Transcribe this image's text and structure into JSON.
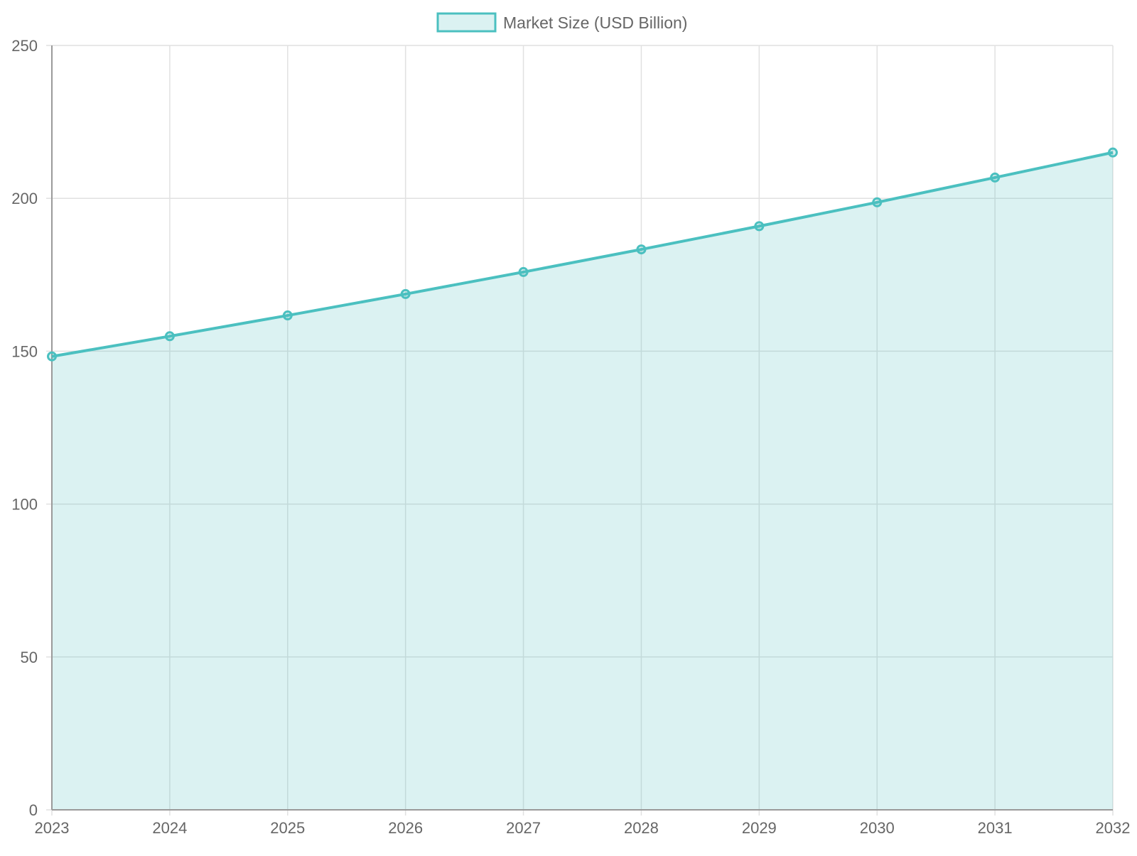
{
  "chart_data": {
    "type": "area",
    "categories": [
      "2023",
      "2024",
      "2025",
      "2026",
      "2027",
      "2028",
      "2029",
      "2030",
      "2031",
      "2032"
    ],
    "series": [
      {
        "name": "Market Size (USD Billion)",
        "values": [
          148.3,
          154.9,
          161.7,
          168.7,
          175.9,
          183.3,
          190.9,
          198.7,
          206.8,
          215.0
        ]
      }
    ],
    "y_ticks": [
      "0",
      "50",
      "100",
      "150",
      "200",
      "250"
    ],
    "ylim": [
      0,
      250
    ],
    "grid": true,
    "legend_position": "top-center",
    "colors": {
      "line": "#4bc0c0",
      "fill": "rgba(75,192,192,0.2)"
    }
  }
}
